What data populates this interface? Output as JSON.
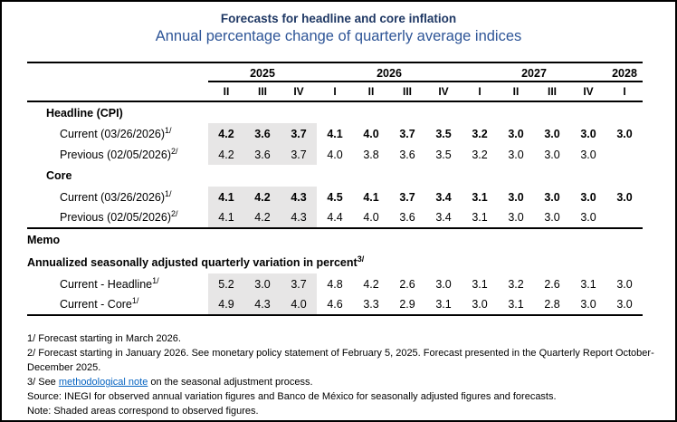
{
  "header": {
    "title": "Forecasts for headline and core inflation",
    "subtitle": "Annual percentage change of quarterly average indices"
  },
  "colors": {
    "title_navy": "#1F3864",
    "subtitle_blue": "#2E5597",
    "shaded_cell_gray": "#E7E6E6",
    "hyperlink_blue": "#0563C1",
    "rule_black": "#000000"
  },
  "table": {
    "year_groups": [
      {
        "label": "2025",
        "span": 3
      },
      {
        "label": "2026",
        "span": 4
      },
      {
        "label": "2027",
        "span": 4
      },
      {
        "label": "2028",
        "span": 1
      }
    ],
    "quarters": [
      "II",
      "III",
      "IV",
      "I",
      "II",
      "III",
      "IV",
      "I",
      "II",
      "III",
      "IV",
      "I"
    ],
    "shaded_note": "first three quarterly columns are shaded (observed figures)",
    "sections": [
      {
        "heading": "Headline (CPI)",
        "rows": [
          {
            "label": "Current (03/26/2026)",
            "sup": "1/",
            "values": [
              "4.2",
              "3.6",
              "3.7",
              "4.1",
              "4.0",
              "3.7",
              "3.5",
              "3.2",
              "3.0",
              "3.0",
              "3.0",
              "3.0"
            ]
          },
          {
            "label": "Previous (02/05/2026)",
            "sup": "2/",
            "values": [
              "4.2",
              "3.6",
              "3.7",
              "4.0",
              "3.8",
              "3.6",
              "3.5",
              "3.2",
              "3.0",
              "3.0",
              "3.0",
              ""
            ]
          }
        ]
      },
      {
        "heading": "Core",
        "rows": [
          {
            "label": "Current (03/26/2026)",
            "sup": "1/",
            "values": [
              "4.1",
              "4.2",
              "4.3",
              "4.5",
              "4.1",
              "3.7",
              "3.4",
              "3.1",
              "3.0",
              "3.0",
              "3.0",
              "3.0"
            ]
          },
          {
            "label": "Previous (02/05/2026)",
            "sup": "2/",
            "values": [
              "4.1",
              "4.2",
              "4.3",
              "4.4",
              "4.0",
              "3.6",
              "3.4",
              "3.1",
              "3.0",
              "3.0",
              "3.0",
              ""
            ]
          }
        ]
      }
    ],
    "memo": {
      "heading": "Memo",
      "subheading": "Annualized seasonally adjusted quarterly variation in percent",
      "subheading_sup": "3/",
      "rows": [
        {
          "label": "Current - Headline",
          "sup": "1/",
          "values": [
            "5.2",
            "3.0",
            "3.7",
            "4.8",
            "4.2",
            "2.6",
            "3.0",
            "3.1",
            "3.2",
            "2.6",
            "3.1",
            "3.0"
          ]
        },
        {
          "label": "Current - Core",
          "sup": "1/",
          "values": [
            "4.9",
            "4.3",
            "4.0",
            "4.6",
            "3.3",
            "2.9",
            "3.1",
            "3.0",
            "3.1",
            "2.8",
            "3.0",
            "3.0"
          ]
        }
      ]
    }
  },
  "footnotes": {
    "fn1": "1/ Forecast starting in March 2026.",
    "fn2": "2/ Forecast starting in January 2026. See monetary policy statement of February 5, 2025. Forecast presented in the Quarterly Report October-December 2025.",
    "fn3_prefix": "3/ See ",
    "fn3_link": "methodological note",
    "fn3_suffix": " on the seasonal adjustment process.",
    "source": "Source: INEGI for observed annual variation figures and Banco de México for seasonally adjusted figures and forecasts.",
    "note": "Note: Shaded areas correspond to observed figures."
  }
}
